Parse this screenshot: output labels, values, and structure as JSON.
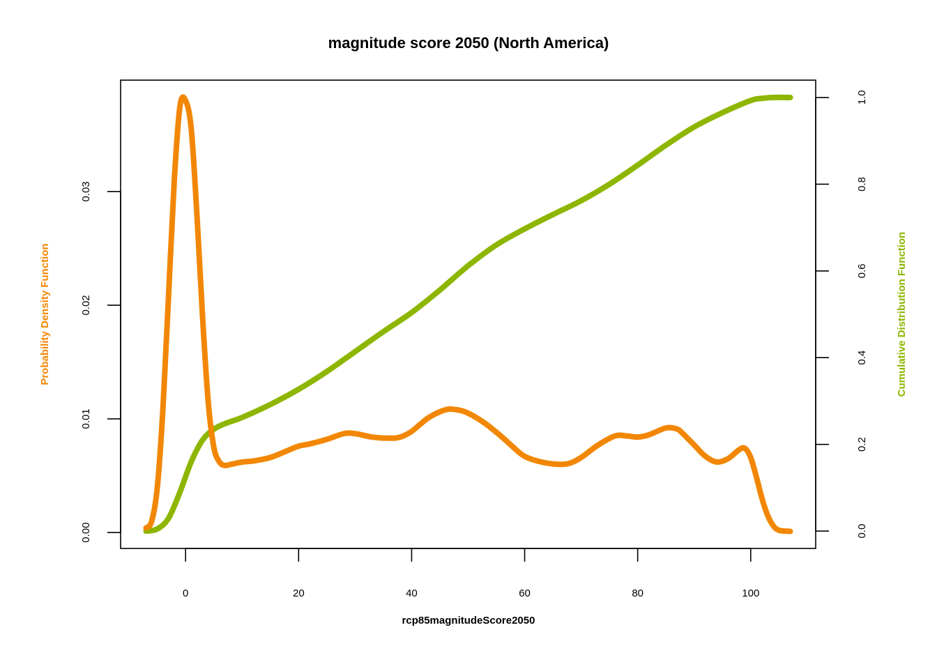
{
  "chart_data": {
    "type": "line",
    "title": "magnitude score 2050 (North America)",
    "xlabel": "rcp85magnitudeScore2050",
    "ylabel_left": "Probability Density Function",
    "ylabel_right": "Cumulative Distribution Function",
    "xlim": [
      -11.5,
      111.5
    ],
    "ylim_left": [
      -0.0014,
      0.0398
    ],
    "ylim_right": [
      -0.04,
      1.04
    ],
    "x_ticks": [
      0,
      20,
      40,
      60,
      80,
      100
    ],
    "x_tick_labels": [
      "0",
      "20",
      "40",
      "60",
      "80",
      "100"
    ],
    "y_left_ticks": [
      0,
      0.01,
      0.02,
      0.03
    ],
    "y_left_tick_labels": [
      "0.00",
      "0.01",
      "0.02",
      "0.03"
    ],
    "y_right_ticks": [
      0,
      0.2,
      0.4,
      0.6,
      0.8,
      1.0
    ],
    "y_right_tick_labels": [
      "0.0",
      "0.2",
      "0.4",
      "0.6",
      "0.8",
      "1.0"
    ],
    "grid": false,
    "series": [
      {
        "axis": "left",
        "color": "#F28705",
        "x": [
          -7,
          -6,
          -5,
          -4,
          -3,
          -2,
          -1,
          0,
          1,
          2,
          3,
          4,
          5,
          6,
          7,
          8,
          10,
          12,
          15,
          18,
          20,
          22,
          25,
          28,
          30,
          33,
          36,
          38,
          40,
          43,
          46,
          48,
          50,
          53,
          56,
          58,
          60,
          63,
          66,
          68,
          70,
          73,
          76,
          78,
          80,
          82,
          85,
          87,
          88,
          90,
          92,
          94,
          96,
          98,
          99,
          100,
          101,
          102,
          103,
          104,
          105,
          107
        ],
        "y": [
          0.0004,
          0.001,
          0.004,
          0.011,
          0.021,
          0.031,
          0.0375,
          0.038,
          0.0355,
          0.028,
          0.019,
          0.0115,
          0.0075,
          0.0062,
          0.0059,
          0.006,
          0.0062,
          0.0063,
          0.0066,
          0.0072,
          0.0076,
          0.0078,
          0.0082,
          0.0087,
          0.0087,
          0.0084,
          0.0083,
          0.0084,
          0.0089,
          0.0101,
          0.0108,
          0.0108,
          0.0105,
          0.0096,
          0.0084,
          0.0075,
          0.0067,
          0.0062,
          0.006,
          0.0061,
          0.0066,
          0.0077,
          0.0085,
          0.0085,
          0.0084,
          0.0086,
          0.0092,
          0.0091,
          0.0087,
          0.0077,
          0.0067,
          0.0062,
          0.0065,
          0.0073,
          0.0074,
          0.0066,
          0.0049,
          0.003,
          0.0015,
          0.0006,
          0.0002,
          0.0001
        ]
      },
      {
        "axis": "right",
        "color": "#8DB600",
        "x": [
          -7,
          -5,
          -3,
          -1,
          1,
          3,
          5,
          7,
          10,
          15,
          20,
          25,
          30,
          35,
          40,
          45,
          50,
          55,
          60,
          65,
          70,
          75,
          80,
          85,
          90,
          95,
          100,
          102,
          104,
          107
        ],
        "y": [
          0.0,
          0.005,
          0.03,
          0.09,
          0.16,
          0.21,
          0.235,
          0.248,
          0.262,
          0.292,
          0.327,
          0.368,
          0.414,
          0.46,
          0.504,
          0.556,
          0.612,
          0.66,
          0.697,
          0.73,
          0.762,
          0.8,
          0.844,
          0.89,
          0.932,
          0.965,
          0.993,
          0.998,
          1.0,
          1.0
        ]
      }
    ]
  }
}
